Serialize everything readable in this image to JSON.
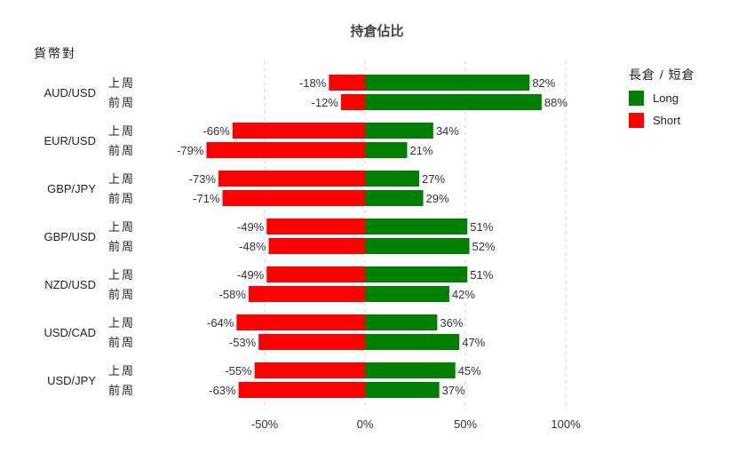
{
  "chart_data": {
    "type": "bar",
    "orientation": "horizontal",
    "title": "持倉佔比",
    "row_header": "貨幣對",
    "xlim": [
      -100,
      100
    ],
    "x_ticks": [
      -50,
      0,
      50,
      100
    ],
    "x_tick_labels": [
      "-50%",
      "0%",
      "50%",
      "100%"
    ],
    "grid": "vertical dashed",
    "legend": {
      "title": "長倉 / 短倉",
      "position": "top-right",
      "items": [
        {
          "name": "Long",
          "color": "#008000"
        },
        {
          "name": "Short",
          "color": "#ff0000"
        }
      ]
    },
    "categories": [
      {
        "pair": "AUD/USD",
        "rows": [
          {
            "period": "上周",
            "short": -18,
            "long": 82,
            "short_label": "-18%",
            "long_label": "82%"
          },
          {
            "period": "前周",
            "short": -12,
            "long": 88,
            "short_label": "-12%",
            "long_label": "88%"
          }
        ]
      },
      {
        "pair": "EUR/USD",
        "rows": [
          {
            "period": "上周",
            "short": -66,
            "long": 34,
            "short_label": "-66%",
            "long_label": "34%"
          },
          {
            "period": "前周",
            "short": -79,
            "long": 21,
            "short_label": "-79%",
            "long_label": "21%"
          }
        ]
      },
      {
        "pair": "GBP/JPY",
        "rows": [
          {
            "period": "上周",
            "short": -73,
            "long": 27,
            "short_label": "-73%",
            "long_label": "27%"
          },
          {
            "period": "前周",
            "short": -71,
            "long": 29,
            "short_label": "-71%",
            "long_label": "29%"
          }
        ]
      },
      {
        "pair": "GBP/USD",
        "rows": [
          {
            "period": "上周",
            "short": -49,
            "long": 51,
            "short_label": "-49%",
            "long_label": "51%"
          },
          {
            "period": "前周",
            "short": -48,
            "long": 52,
            "short_label": "-48%",
            "long_label": "52%"
          }
        ]
      },
      {
        "pair": "NZD/USD",
        "rows": [
          {
            "period": "上周",
            "short": -49,
            "long": 51,
            "short_label": "-49%",
            "long_label": "51%"
          },
          {
            "period": "前周",
            "short": -58,
            "long": 42,
            "short_label": "-58%",
            "long_label": "42%"
          }
        ]
      },
      {
        "pair": "USD/CAD",
        "rows": [
          {
            "period": "上周",
            "short": -64,
            "long": 36,
            "short_label": "-64%",
            "long_label": "36%"
          },
          {
            "period": "前周",
            "short": -53,
            "long": 47,
            "short_label": "-53%",
            "long_label": "47%"
          }
        ]
      },
      {
        "pair": "USD/JPY",
        "rows": [
          {
            "period": "上周",
            "short": -55,
            "long": 45,
            "short_label": "-55%",
            "long_label": "45%"
          },
          {
            "period": "前周",
            "short": -63,
            "long": 37,
            "short_label": "-63%",
            "long_label": "37%"
          }
        ]
      }
    ]
  }
}
